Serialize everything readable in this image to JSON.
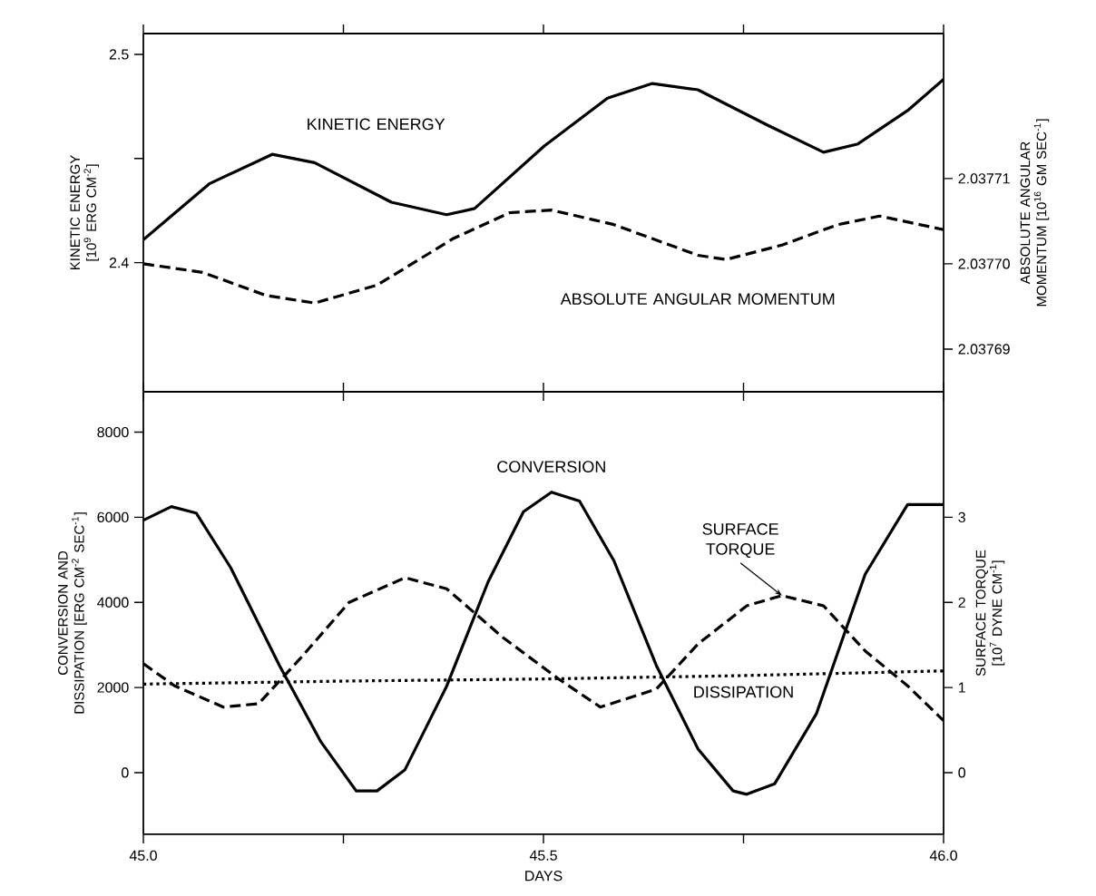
{
  "chart_data": [
    {
      "type": "line",
      "ylabel": "KINETIC ENERGY [10$^{9}$ ERG CM$^{-2}$]",
      "y2label": "ABSOLUTE ANGULAR MOMENTUM [10$^{16}$ GM SEC$^{-1}$]",
      "xlim": [
        45.0,
        46.0
      ],
      "xticks": [
        45.0,
        45.25,
        45.5,
        45.75,
        46.0
      ],
      "ylim": [
        2.338,
        2.51
      ],
      "yticks": [
        2.4,
        {
          "value": 2.45,
          "label": null
        },
        2.5
      ],
      "y2lim": [
        2.037685,
        2.037727
      ],
      "y2ticks": [
        2.03769,
        {
          "value": 2.0377,
          "label": "2.03770"
        },
        2.03771
      ],
      "tick_labels": "y",
      "grid": false,
      "marker": "none",
      "series": [
        {
          "name": "KINETIC ENERGY",
          "color": "#000000",
          "line_style": "solid",
          "x": [
            45.0,
            45.083,
            45.161,
            45.214,
            45.31,
            45.379,
            45.414,
            45.501,
            45.58,
            45.636,
            45.693,
            45.78,
            45.85,
            45.893,
            45.955,
            46.0
          ],
          "values": [
            2.411,
            2.438,
            2.452,
            2.448,
            2.429,
            2.423,
            2.426,
            2.456,
            2.479,
            2.486,
            2.483,
            2.466,
            2.453,
            2.457,
            2.473,
            2.488
          ]
        },
        {
          "name": "ABSOLUTE ANGULAR MOMENTUM",
          "color": "#000000",
          "line_style": "dashed",
          "axis": "y2",
          "x": [
            45.0,
            45.074,
            45.153,
            45.214,
            45.292,
            45.388,
            45.458,
            45.51,
            45.588,
            45.693,
            45.728,
            45.798,
            45.868,
            45.92,
            46.0
          ],
          "values": [
            2.0377,
            2.037699,
            2.0376963,
            2.0376954,
            2.0376975,
            2.037703,
            2.037706,
            2.0377063,
            2.0377046,
            2.037701,
            2.0377005,
            2.0377022,
            2.0377046,
            2.0377056,
            2.037704
          ]
        }
      ]
    },
    {
      "type": "line",
      "xlabel": "DAYS",
      "ylabel": "CONVERSION AND DISSIPATION [ERG CM$^{-2}$ SEC$^{-1}$]",
      "y2label": "SURFACE TORQUE [10$^{7}$ DYNE CM$^{-1}$]",
      "xlim": [
        45.0,
        46.0
      ],
      "xticks": [
        {
          "value": 45.0,
          "label": "45.0"
        },
        {
          "value": 45.25,
          "label": null
        },
        {
          "value": 45.5,
          "label": "45.5"
        },
        {
          "value": 45.75,
          "label": null
        },
        {
          "value": 46.0,
          "label": "46.0"
        }
      ],
      "ylim": [
        -1450,
        8950
      ],
      "yticks": [
        0,
        2000,
        4000,
        6000,
        8000
      ],
      "y2lim": [
        -0.725,
        4.475
      ],
      "y2ticks": [
        0,
        1,
        2,
        3
      ],
      "grid": false,
      "marker": "none",
      "series": [
        {
          "name": "CONVERSION",
          "color": "#000000",
          "line_style": "solid",
          "x": [
            45.0,
            45.035,
            45.066,
            45.109,
            45.17,
            45.222,
            45.266,
            45.292,
            45.327,
            45.379,
            45.431,
            45.475,
            45.51,
            45.545,
            45.588,
            45.641,
            45.693,
            45.737,
            45.754,
            45.789,
            45.841,
            45.902,
            45.955,
            46.0
          ],
          "values": [
            5930,
            6250,
            6100,
            4820,
            2520,
            720,
            -430,
            -430,
            70,
            2030,
            4490,
            6130,
            6590,
            6380,
            4980,
            2520,
            560,
            -430,
            -510,
            -260,
            1380,
            4660,
            6300,
            6300
          ]
        },
        {
          "name": "SURFACE TORQUE",
          "color": "#000000",
          "line_style": "dashed",
          "axis": "y2",
          "x": [
            45.0,
            45.039,
            45.1,
            45.144,
            45.196,
            45.257,
            45.327,
            45.379,
            45.449,
            45.519,
            45.571,
            45.641,
            45.693,
            45.754,
            45.798,
            45.85,
            45.902,
            45.955,
            46.0
          ],
          "values": [
            1.28,
            1.02,
            0.77,
            0.81,
            1.34,
            2.0,
            2.29,
            2.16,
            1.59,
            1.1,
            0.77,
            0.98,
            1.51,
            1.96,
            2.08,
            1.96,
            1.43,
            1.02,
            0.61
          ]
        },
        {
          "name": "DISSIPATION",
          "color": "#000000",
          "line_style": "dotted",
          "x": [
            45.0,
            45.25,
            45.5,
            45.75,
            46.0
          ],
          "values": [
            2080,
            2150,
            2200,
            2280,
            2390
          ]
        }
      ]
    }
  ]
}
